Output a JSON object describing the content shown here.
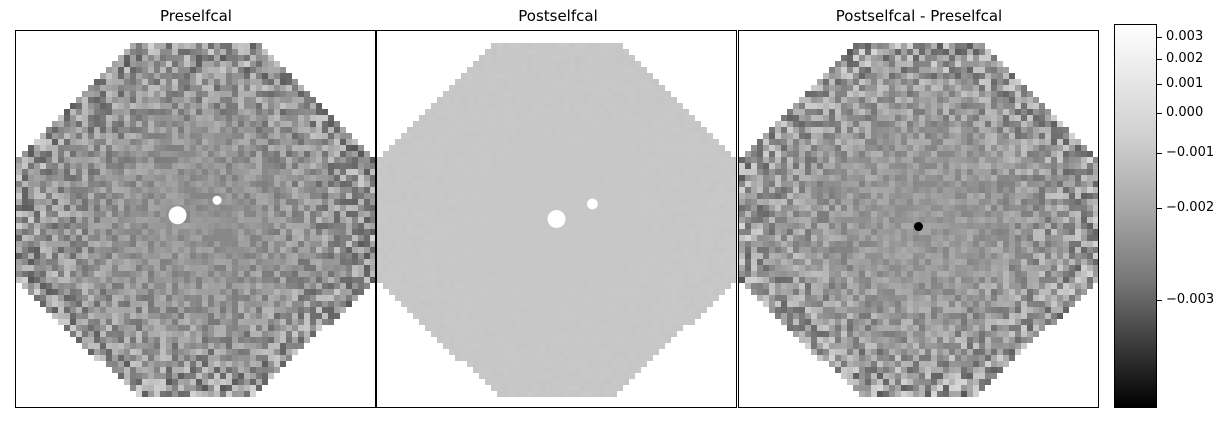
{
  "chart_data": {
    "type": "heatmap",
    "panels": [
      {
        "title": "Preselfcal",
        "noise": 0.85,
        "base": 0.58,
        "edge_noise": 1.0,
        "sources": [
          {
            "dx": -0.05,
            "dy": -0.01,
            "r": 0.05,
            "v": "white"
          },
          {
            "dx": 0.06,
            "dy": -0.05,
            "r": 0.025,
            "v": "white"
          }
        ]
      },
      {
        "title": "Postselfcal",
        "noise": 0.12,
        "base": 0.78,
        "edge_noise": 0.2,
        "sources": [
          {
            "dx": 0.0,
            "dy": 0.0,
            "r": 0.05,
            "v": "white"
          },
          {
            "dx": 0.1,
            "dy": -0.04,
            "r": 0.03,
            "v": "white"
          }
        ]
      },
      {
        "title": "Postselfcal - Preselfcal",
        "noise": 0.85,
        "base": 0.6,
        "edge_noise": 1.0,
        "sources": [
          {
            "dx": 0.0,
            "dy": 0.02,
            "r": 0.025,
            "v": "black"
          }
        ]
      }
    ],
    "colorbar": {
      "colormap": "gray",
      "tick_labels": [
        "0.003",
        "0.002",
        "0.001",
        "0.000",
        "−0.001",
        "−0.002",
        "−0.003"
      ],
      "tick_values": [
        0.003,
        0.002,
        0.001,
        0.0,
        -0.001,
        -0.002,
        -0.003
      ]
    }
  }
}
